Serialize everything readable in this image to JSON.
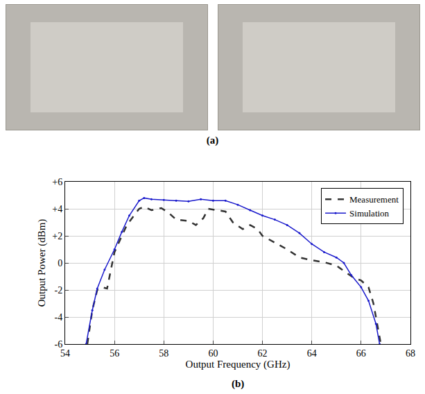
{
  "panel_labels": [
    "(a)",
    "(b)"
  ],
  "chart_data": {
    "type": "line",
    "x_label": "Output Frequency (GHz)",
    "y_label": "Output Power (dBm)",
    "xlim": [
      54,
      68
    ],
    "xticks": [
      54,
      56,
      58,
      60,
      62,
      64,
      66,
      68
    ],
    "ylim": [
      -6,
      6
    ],
    "yticks": [
      -6,
      -4,
      -2,
      0,
      {
        "value": 2,
        "label": "+2"
      },
      {
        "value": 4,
        "label": "+4"
      },
      {
        "value": 6,
        "label": "+6"
      }
    ],
    "grid": true,
    "legend": "top-right",
    "series": [
      {
        "name": "Measurement",
        "color": "#333333",
        "line_style": "dash",
        "marker": "none",
        "x": [
          54.9,
          55.1,
          55.3,
          55.5,
          55.7,
          56.0,
          56.5,
          57.0,
          57.2,
          57.5,
          57.9,
          58.2,
          58.5,
          59.0,
          59.3,
          59.6,
          59.8,
          60.2,
          60.5,
          60.8,
          61.2,
          61.5,
          61.8,
          62.0,
          62.5,
          63.0,
          63.5,
          64.0,
          64.5,
          65.0,
          65.3,
          65.7,
          66.0,
          66.3,
          66.5,
          66.8
        ],
        "values": [
          -6,
          -3.5,
          -2,
          -1.8,
          -1.9,
          0.8,
          2.8,
          4.0,
          4.15,
          3.9,
          4.05,
          3.7,
          3.2,
          3.1,
          2.8,
          3.3,
          4.0,
          3.9,
          3.8,
          3.0,
          2.5,
          2.8,
          2.5,
          2.0,
          1.5,
          1.0,
          0.4,
          0.2,
          0.05,
          -0.2,
          -0.6,
          -1.1,
          -1.3,
          -1.8,
          -3,
          -6
        ]
      },
      {
        "name": "Simulation",
        "color": "#1a1acc",
        "line_style": "solid",
        "marker": "circle",
        "x": [
          54.85,
          55.1,
          55.3,
          55.6,
          56.0,
          56.3,
          56.6,
          57.0,
          57.2,
          57.5,
          58.0,
          58.5,
          59.0,
          59.5,
          60.0,
          60.5,
          61.0,
          61.5,
          62.0,
          62.5,
          63.0,
          63.5,
          64.0,
          64.5,
          65.0,
          65.3,
          65.6,
          66.0,
          66.3,
          66.6,
          66.75
        ],
        "values": [
          -6,
          -3.5,
          -1.9,
          -0.5,
          1.0,
          2.3,
          3.5,
          4.6,
          4.8,
          4.7,
          4.65,
          4.6,
          4.55,
          4.7,
          4.6,
          4.6,
          4.3,
          3.9,
          3.5,
          3.2,
          2.8,
          2.2,
          1.4,
          0.8,
          0.4,
          0.0,
          -0.9,
          -1.8,
          -2.8,
          -4.5,
          -6
        ]
      }
    ]
  }
}
